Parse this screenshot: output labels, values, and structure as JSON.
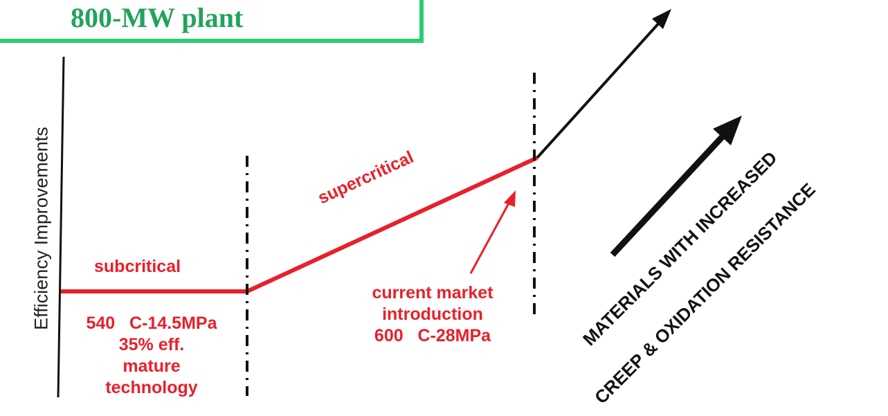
{
  "title": "800-MW plant",
  "y_axis_label": "Efficiency Improvements",
  "stages": {
    "subcritical": {
      "name": "subcritical",
      "details": [
        "540   C-14.5MPa",
        "35% eff.",
        "mature",
        "technology"
      ]
    },
    "supercritical": {
      "name": "supercritical"
    },
    "current": {
      "details": [
        "current market",
        "introduction",
        "600   C-28MPa"
      ]
    }
  },
  "materials_label": {
    "line1": "MATERIALS WITH INCREASED",
    "line2": "CREEP & OXIDATION RESISTANCE"
  },
  "colors": {
    "accent_red": "#e8202a",
    "title_green": "#22a35a",
    "box_green": "#2ecc71",
    "black": "#111111"
  }
}
